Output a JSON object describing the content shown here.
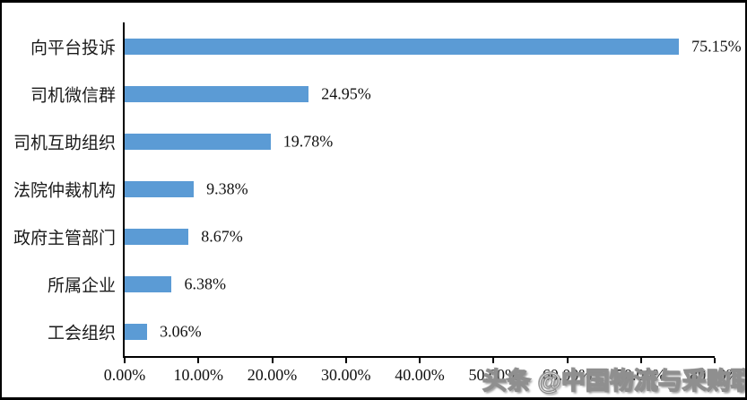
{
  "chart_data": {
    "type": "bar",
    "orientation": "horizontal",
    "title": "",
    "xlabel": "",
    "ylabel": "",
    "categories": [
      "向平台投诉",
      "司机微信群",
      "司机互助组织",
      "法院仲裁机构",
      "政府主管部门",
      "所属企业",
      "工会组织"
    ],
    "values": [
      75.15,
      24.95,
      19.78,
      9.38,
      8.67,
      6.38,
      3.06
    ],
    "value_labels": [
      "75.15%",
      "24.95%",
      "19.78%",
      "9.38%",
      "8.67%",
      "6.38%",
      "3.06%"
    ],
    "x_ticks": [
      "0.00%",
      "10.00%",
      "20.00%",
      "30.00%",
      "40.00%",
      "50.00%",
      "60.00%",
      "70.00%",
      "80.00%"
    ],
    "x_tick_values": [
      0,
      10,
      20,
      30,
      40,
      50,
      60,
      70,
      80
    ],
    "xlim": [
      0,
      80
    ],
    "grid": "off",
    "legend": "none",
    "bar_color": "#5B9BD5",
    "axis_color": "#000000",
    "text_color": "#111111"
  },
  "watermark": {
    "text": "头条 @中国物流与采购联合会"
  }
}
